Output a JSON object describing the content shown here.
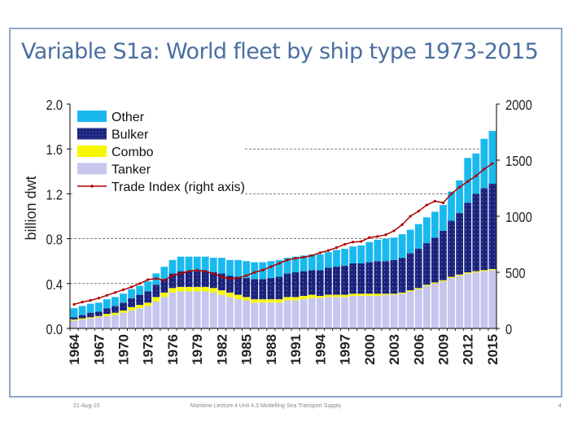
{
  "slide": {
    "title": "Variable S1a: World fleet by ship type 1973-2015",
    "footer_date": "21-Aug-15",
    "footer_center": "Maritime Lecture 4 Unit 4.3 Modelling Sea Transport Supply",
    "page_number": "4"
  },
  "colors": {
    "other": "#19b9ee",
    "bulker": "#1a237e",
    "combo": "#f7f700",
    "tanker": "#c6c6ee",
    "trade": "#b00000",
    "border": "#8ea9c8",
    "title": "#4a6fa0"
  },
  "chart_data": {
    "type": "bar",
    "stacked": true,
    "x": [
      1964,
      1965,
      1966,
      1967,
      1968,
      1969,
      1970,
      1971,
      1972,
      1973,
      1974,
      1975,
      1976,
      1977,
      1978,
      1979,
      1980,
      1981,
      1982,
      1983,
      1984,
      1985,
      1986,
      1987,
      1988,
      1989,
      1990,
      1991,
      1992,
      1993,
      1994,
      1995,
      1996,
      1997,
      1998,
      1999,
      2000,
      2001,
      2002,
      2003,
      2004,
      2005,
      2006,
      2007,
      2008,
      2009,
      2010,
      2011,
      2012,
      2013,
      2014,
      2015
    ],
    "x_tick_labels": [
      "1964",
      "1967",
      "1970",
      "1973",
      "1976",
      "1979",
      "1982",
      "1985",
      "1988",
      "1991",
      "1994",
      "1997",
      "2000",
      "2003",
      "2006",
      "2009",
      "2012",
      "2015"
    ],
    "ylabel": "billion dwt",
    "ylim": [
      0,
      2.0
    ],
    "y_ticks": [
      "0.0",
      "0.4",
      "0.8",
      "1.2",
      "1.6",
      "2.0"
    ],
    "y2lim": [
      0,
      2000
    ],
    "y2_ticks": [
      "0",
      "500",
      "1000",
      "1500",
      "2000"
    ],
    "legend": [
      "Other",
      "Bulker",
      "Combo",
      "Tanker",
      "Trade Index (right axis)"
    ],
    "legend_position": "top-left",
    "gridlines": "dashed horizontal",
    "series": [
      {
        "name": "Tanker",
        "color": "tanker",
        "values": [
          0.07,
          0.08,
          0.09,
          0.1,
          0.11,
          0.12,
          0.14,
          0.16,
          0.18,
          0.2,
          0.24,
          0.28,
          0.32,
          0.33,
          0.33,
          0.33,
          0.33,
          0.32,
          0.3,
          0.28,
          0.26,
          0.25,
          0.23,
          0.23,
          0.23,
          0.23,
          0.25,
          0.25,
          0.26,
          0.27,
          0.27,
          0.28,
          0.28,
          0.28,
          0.29,
          0.29,
          0.29,
          0.29,
          0.3,
          0.3,
          0.31,
          0.33,
          0.35,
          0.38,
          0.4,
          0.42,
          0.45,
          0.47,
          0.49,
          0.5,
          0.51,
          0.52
        ]
      },
      {
        "name": "Combo",
        "color": "combo",
        "values": [
          0.01,
          0.01,
          0.01,
          0.01,
          0.02,
          0.02,
          0.02,
          0.03,
          0.03,
          0.03,
          0.04,
          0.04,
          0.04,
          0.04,
          0.04,
          0.04,
          0.04,
          0.04,
          0.04,
          0.04,
          0.04,
          0.03,
          0.03,
          0.03,
          0.03,
          0.03,
          0.03,
          0.03,
          0.03,
          0.03,
          0.02,
          0.02,
          0.02,
          0.02,
          0.02,
          0.02,
          0.02,
          0.02,
          0.01,
          0.01,
          0.01,
          0.01,
          0.01,
          0.01,
          0.01,
          0.01,
          0.01,
          0.01,
          0.01,
          0.01,
          0.01,
          0.01
        ]
      },
      {
        "name": "Bulker",
        "color": "bulker",
        "values": [
          0.02,
          0.03,
          0.04,
          0.04,
          0.05,
          0.06,
          0.07,
          0.08,
          0.09,
          0.1,
          0.11,
          0.12,
          0.13,
          0.14,
          0.14,
          0.14,
          0.14,
          0.14,
          0.15,
          0.15,
          0.16,
          0.17,
          0.18,
          0.18,
          0.19,
          0.2,
          0.21,
          0.22,
          0.22,
          0.22,
          0.23,
          0.24,
          0.25,
          0.26,
          0.27,
          0.27,
          0.28,
          0.29,
          0.29,
          0.3,
          0.31,
          0.33,
          0.35,
          0.37,
          0.4,
          0.44,
          0.5,
          0.55,
          0.62,
          0.69,
          0.73,
          0.76
        ]
      },
      {
        "name": "Other",
        "color": "other",
        "values": [
          0.08,
          0.08,
          0.08,
          0.08,
          0.08,
          0.08,
          0.08,
          0.08,
          0.08,
          0.09,
          0.1,
          0.11,
          0.12,
          0.13,
          0.13,
          0.13,
          0.13,
          0.13,
          0.14,
          0.14,
          0.15,
          0.15,
          0.15,
          0.15,
          0.15,
          0.15,
          0.14,
          0.14,
          0.14,
          0.14,
          0.14,
          0.14,
          0.15,
          0.15,
          0.15,
          0.16,
          0.18,
          0.19,
          0.2,
          0.2,
          0.21,
          0.21,
          0.22,
          0.23,
          0.23,
          0.23,
          0.26,
          0.29,
          0.4,
          0.36,
          0.44,
          0.47
        ]
      },
      {
        "name": "Trade Index (right axis)",
        "color": "trade",
        "axis": "right",
        "values": [
          215,
          235,
          250,
          270,
          295,
          320,
          345,
          370,
          400,
          435,
          445,
          430,
          470,
          490,
          510,
          520,
          510,
          490,
          460,
          440,
          450,
          470,
          500,
          520,
          550,
          580,
          610,
          625,
          635,
          650,
          675,
          695,
          720,
          750,
          770,
          775,
          810,
          820,
          835,
          870,
          925,
          1000,
          1045,
          1100,
          1135,
          1120,
          1200,
          1260,
          1310,
          1360,
          1420,
          1470
        ]
      }
    ]
  }
}
